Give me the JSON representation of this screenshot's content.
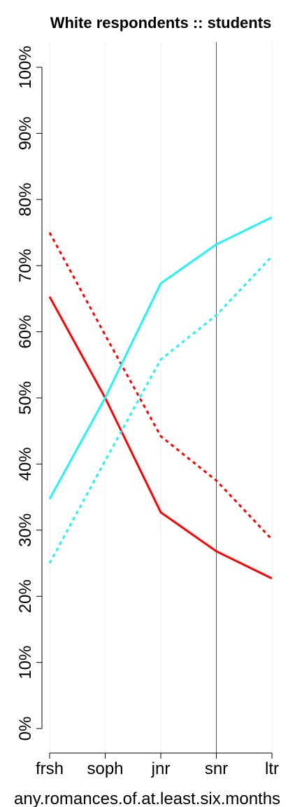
{
  "chart_data": {
    "type": "line",
    "title": "White respondents :: students",
    "x_label": "any.romances.of.at.least.six.months",
    "categories": [
      "frsh",
      "soph",
      "jnr",
      "snr",
      "ltr"
    ],
    "series": [
      {
        "color": "#ff0000",
        "dashed": false,
        "values": [
          65.3,
          50,
          32.7,
          26.8,
          22.7
        ]
      },
      {
        "color": "#ff0000",
        "dashed": true,
        "values": [
          75,
          59.5,
          44.2,
          37.5,
          28.6
        ]
      },
      {
        "color": "#22f2f2",
        "dashed": false,
        "values": [
          34.7,
          50,
          67.3,
          73.2,
          77.3
        ]
      },
      {
        "color": "#22f2f2",
        "dashed": true,
        "values": [
          25,
          40.5,
          55.8,
          62.5,
          71.4
        ]
      }
    ],
    "ylim": [
      0,
      100
    ],
    "yticks": [
      {
        "value": 0,
        "label": "0%"
      },
      {
        "value": 10,
        "label": "10%"
      },
      {
        "value": 20,
        "label": "20%"
      },
      {
        "value": 30,
        "label": "30%"
      },
      {
        "value": 40,
        "label": "40%"
      },
      {
        "value": 50,
        "label": "50%"
      },
      {
        "value": 60,
        "label": "60%"
      },
      {
        "value": 70,
        "label": "70%"
      },
      {
        "value": 80,
        "label": "80%"
      },
      {
        "value": 90,
        "label": "90%"
      },
      {
        "value": 100,
        "label": "100%"
      }
    ],
    "grid": true,
    "reference_line": "snr"
  }
}
